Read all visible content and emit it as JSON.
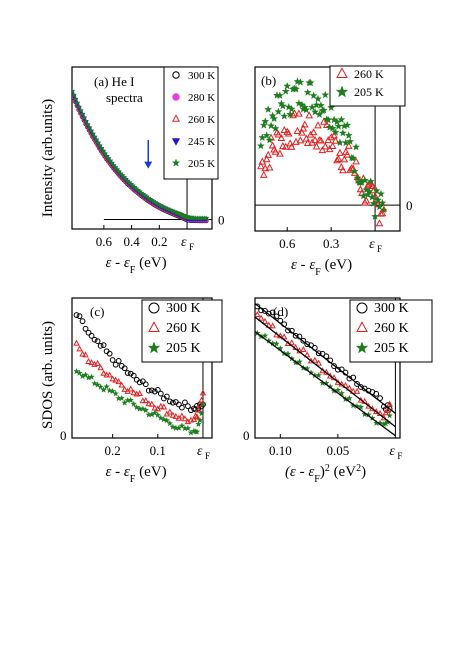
{
  "figure": {
    "ylabel_top": "Intensity (arb.units)",
    "ylabel_bottom": "SDOS (arb. units)"
  },
  "chart_data": [
    {
      "id": "a",
      "type": "line",
      "panel_label": "(a) He I",
      "panel_label_2": "spectra",
      "xlabel_main": "ε - ε",
      "xlabel_sub": "F",
      "xlabel_unit": " (eV)",
      "x_reversed": true,
      "xlim": [
        0.83,
        -0.18
      ],
      "ylim": [
        -0.3,
        4.8
      ],
      "x_ticks": [
        0.6,
        0.4,
        0.2
      ],
      "x_tick_labels": [
        "0.6",
        "0.4",
        "0.2"
      ],
      "ef_label_main": "ε",
      "ef_label_sub": "F",
      "zero_label": "0",
      "arrow_x": 0.28,
      "arrow_y": [
        2.5,
        1.6
      ],
      "legend_position": "top-right",
      "series": [
        {
          "name": "300 K",
          "marker": "circle-open",
          "color": "#000000"
        },
        {
          "name": "280 K",
          "marker": "circle-filled",
          "color": "#e43fe4"
        },
        {
          "name": "260 K",
          "marker": "triangle-open",
          "color": "#e52020"
        },
        {
          "name": "245 K",
          "marker": "triangle-down-filled",
          "color": "#1a1acc"
        },
        {
          "name": "205 K",
          "marker": "star",
          "color": "#1d7d1d"
        }
      ],
      "curve_x": [
        0.83,
        0.78,
        0.73,
        0.68,
        0.63,
        0.58,
        0.53,
        0.48,
        0.43,
        0.38,
        0.33,
        0.28,
        0.23,
        0.18,
        0.13,
        0.08,
        0.05,
        0.03,
        0.01,
        0.0,
        -0.02,
        -0.05,
        -0.1,
        -0.15
      ],
      "curve_y": [
        4.0,
        3.5,
        3.05,
        2.65,
        2.28,
        1.95,
        1.66,
        1.4,
        1.17,
        0.97,
        0.79,
        0.63,
        0.49,
        0.37,
        0.27,
        0.18,
        0.13,
        0.09,
        0.05,
        0.03,
        0.015,
        0.005,
        0.0,
        0.0
      ]
    },
    {
      "id": "b",
      "type": "scatter",
      "panel_label": "(b)",
      "xlabel_main": "ε - ε",
      "xlabel_sub": "F",
      "xlabel_unit": " (eV)",
      "x_reversed": true,
      "xlim": [
        0.82,
        -0.17
      ],
      "ylim": [
        -0.3,
        1.6
      ],
      "x_ticks": [
        0.6,
        0.3
      ],
      "x_tick_labels": [
        "0.6",
        "0.3"
      ],
      "ef_label_main": "ε",
      "ef_label_sub": "F",
      "zero_label": "0",
      "legend_position": "top-right",
      "series": [
        {
          "name": "260 K",
          "marker": "triangle-open",
          "color": "#e52020",
          "x": [
            0.78,
            0.72,
            0.66,
            0.6,
            0.54,
            0.48,
            0.42,
            0.36,
            0.3,
            0.24,
            0.18,
            0.12,
            0.06,
            0.0,
            -0.06
          ],
          "y": [
            0.45,
            0.6,
            0.75,
            0.82,
            0.88,
            0.86,
            0.82,
            0.8,
            0.74,
            0.62,
            0.5,
            0.34,
            0.14,
            0.0,
            -0.05
          ]
        },
        {
          "name": "205 K",
          "marker": "star",
          "color": "#1d7d1d",
          "x": [
            0.78,
            0.72,
            0.66,
            0.6,
            0.54,
            0.48,
            0.42,
            0.36,
            0.3,
            0.24,
            0.18,
            0.12,
            0.06,
            0.0,
            -0.06
          ],
          "y": [
            0.8,
            0.95,
            1.1,
            1.22,
            1.28,
            1.3,
            1.27,
            1.2,
            1.08,
            0.92,
            0.72,
            0.48,
            0.2,
            0.02,
            -0.06
          ]
        }
      ]
    },
    {
      "id": "c",
      "type": "scatter",
      "panel_label": "(c)",
      "xlabel_main": "ε - ε",
      "xlabel_sub": "F",
      "xlabel_unit": " (eV)",
      "x_reversed": true,
      "xlim": [
        0.29,
        -0.02
      ],
      "ylim": [
        0,
        1.25
      ],
      "x_ticks": [
        0.2,
        0.1
      ],
      "x_tick_labels": [
        "0.2",
        "0.1"
      ],
      "ef_label_main": "ε",
      "ef_label_sub": "F",
      "zero_label": "0",
      "legend_position": "top-right",
      "series": [
        {
          "name": "300 K",
          "marker": "circle-open",
          "color": "#000000",
          "x": [
            0.28,
            0.26,
            0.24,
            0.22,
            0.2,
            0.18,
            0.16,
            0.14,
            0.12,
            0.1,
            0.08,
            0.06,
            0.04,
            0.02,
            0.01,
            0.0
          ],
          "y": [
            1.1,
            0.98,
            0.86,
            0.8,
            0.7,
            0.64,
            0.56,
            0.5,
            0.45,
            0.4,
            0.36,
            0.32,
            0.29,
            0.27,
            0.28,
            0.3
          ]
        },
        {
          "name": "260 K",
          "marker": "triangle-open",
          "color": "#e52020",
          "x": [
            0.28,
            0.26,
            0.24,
            0.22,
            0.2,
            0.18,
            0.16,
            0.14,
            0.12,
            0.1,
            0.08,
            0.06,
            0.04,
            0.02,
            0.01,
            0.0
          ],
          "y": [
            0.82,
            0.72,
            0.66,
            0.6,
            0.54,
            0.48,
            0.42,
            0.37,
            0.32,
            0.28,
            0.24,
            0.2,
            0.17,
            0.14,
            0.22,
            0.4
          ]
        },
        {
          "name": "205 K",
          "marker": "star",
          "color": "#1d7d1d",
          "x": [
            0.28,
            0.26,
            0.24,
            0.22,
            0.2,
            0.18,
            0.16,
            0.14,
            0.12,
            0.1,
            0.08,
            0.06,
            0.04,
            0.02,
            0.01,
            0.0
          ],
          "y": [
            0.62,
            0.55,
            0.5,
            0.45,
            0.4,
            0.35,
            0.31,
            0.27,
            0.23,
            0.19,
            0.15,
            0.11,
            0.07,
            0.04,
            0.1,
            0.3
          ]
        }
      ]
    },
    {
      "id": "d",
      "type": "scatter",
      "panel_label": "(d)",
      "xlabel_pre": "(ε - ε",
      "xlabel_sub": "F",
      "xlabel_post": ")",
      "xlabel_sup": "2",
      "xlabel_unit": " (eV",
      "xlabel_unit_sup": "2",
      "xlabel_unit_end": ")",
      "x_reversed": true,
      "xlim": [
        0.122,
        -0.004
      ],
      "ylim": [
        0,
        1.25
      ],
      "x_ticks": [
        0.1,
        0.05
      ],
      "x_tick_labels": [
        "0.10",
        "0.05"
      ],
      "ef_label_main": "ε",
      "ef_label_sub": "F",
      "zero_label": "0",
      "legend_position": "top-right",
      "fit_lines": [
        {
          "x": [
            0.122,
            0.0
          ],
          "y": [
            1.2,
            0.22
          ]
        },
        {
          "x": [
            0.122,
            0.0
          ],
          "y": [
            1.08,
            0.1
          ]
        },
        {
          "x": [
            0.122,
            0.0
          ],
          "y": [
            0.95,
            0.02
          ]
        }
      ],
      "series": [
        {
          "name": "300 K",
          "marker": "circle-open",
          "color": "#000000",
          "x": [
            0.12,
            0.11,
            0.1,
            0.09,
            0.08,
            0.07,
            0.06,
            0.05,
            0.04,
            0.03,
            0.02,
            0.01,
            0.005
          ],
          "y": [
            1.19,
            1.12,
            1.04,
            0.96,
            0.88,
            0.8,
            0.72,
            0.64,
            0.56,
            0.48,
            0.4,
            0.3,
            0.26
          ]
        },
        {
          "name": "260 K",
          "marker": "triangle-open",
          "color": "#e52020",
          "x": [
            0.12,
            0.11,
            0.1,
            0.09,
            0.08,
            0.07,
            0.06,
            0.05,
            0.04,
            0.03,
            0.02,
            0.01,
            0.005
          ],
          "y": [
            1.07,
            1.0,
            0.92,
            0.84,
            0.76,
            0.68,
            0.6,
            0.52,
            0.44,
            0.36,
            0.28,
            0.2,
            0.3
          ]
        },
        {
          "name": "205 K",
          "marker": "star",
          "color": "#1d7d1d",
          "x": [
            0.12,
            0.11,
            0.1,
            0.09,
            0.08,
            0.07,
            0.06,
            0.05,
            0.04,
            0.03,
            0.02,
            0.01,
            0.005
          ],
          "y": [
            0.94,
            0.87,
            0.79,
            0.71,
            0.64,
            0.56,
            0.49,
            0.41,
            0.34,
            0.26,
            0.19,
            0.11,
            0.2
          ]
        }
      ]
    }
  ]
}
